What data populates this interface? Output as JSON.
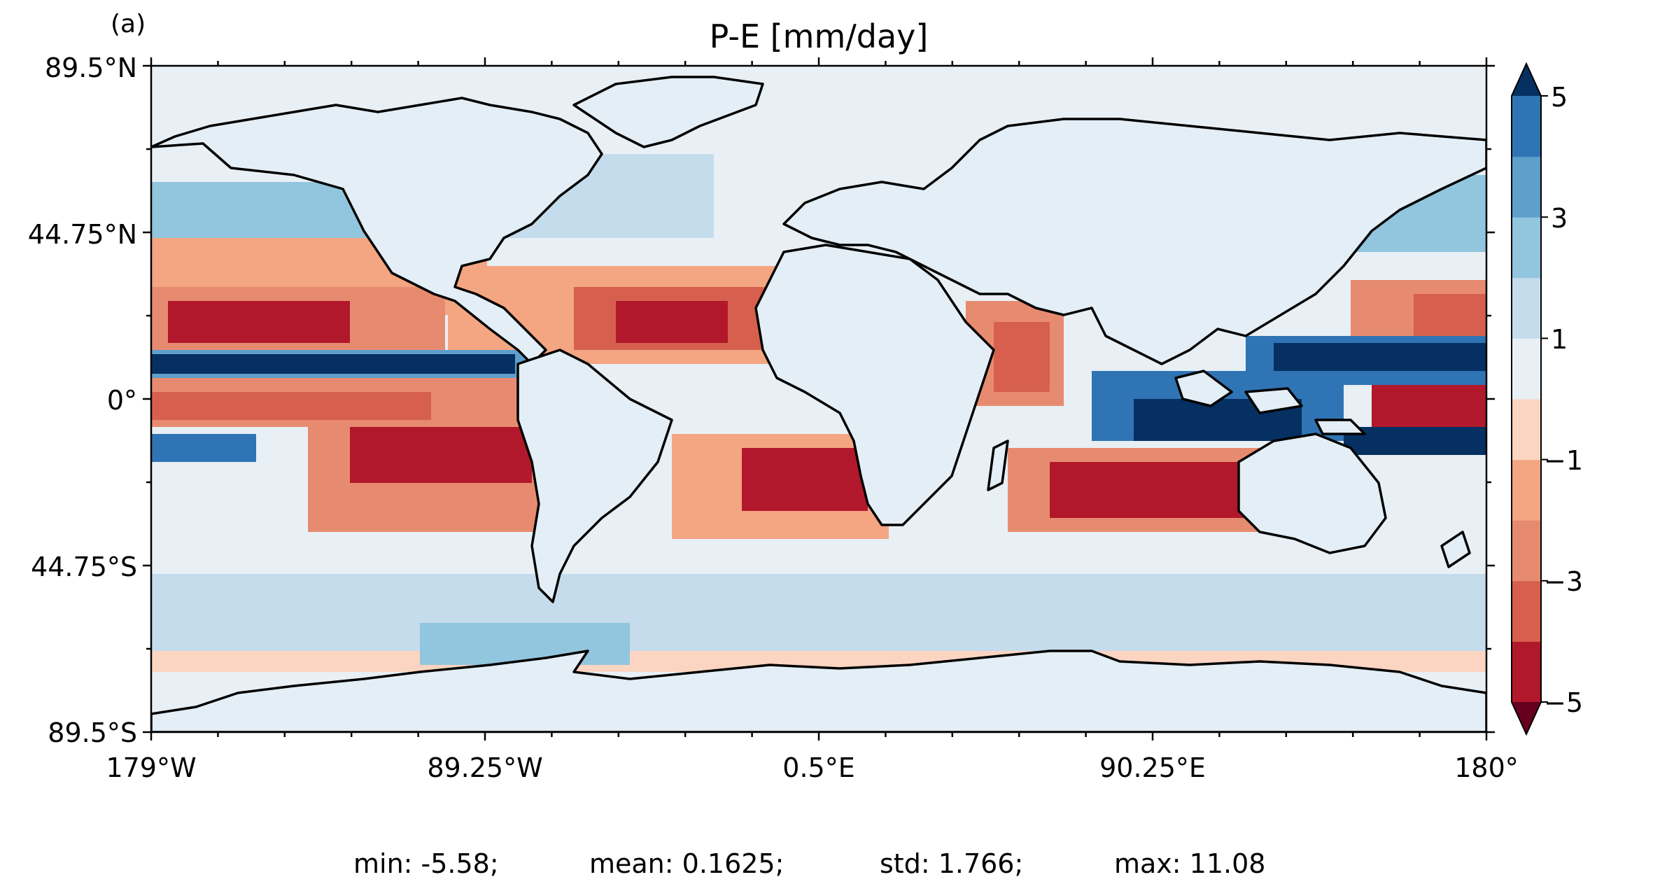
{
  "panel_label": "(a)",
  "title": "P-E [mm/day]",
  "map": {
    "ocean_background": "#e8f0f5",
    "y_tick_labels": [
      "89.5°N",
      "44.75°N",
      "0°",
      "44.75°S",
      "89.5°S"
    ],
    "x_tick_labels": [
      "179°W",
      "89.25°W",
      "0.5°E",
      "90.25°E",
      "180°"
    ],
    "coastline_color": "#000000"
  },
  "colorbar": {
    "levels": [
      -5,
      -4,
      -3,
      -2,
      -1,
      0,
      1,
      2,
      3,
      4,
      5
    ],
    "tick_labels": [
      "5",
      "3",
      "1",
      "−1",
      "−3",
      "−5"
    ],
    "colors_bottom_to_top": [
      "#b2182b",
      "#d6604d",
      "#e78b70",
      "#f4a582",
      "#fbd5c1",
      "#e8f0f5",
      "#c5dcec",
      "#92c5de",
      "#5e9fcc",
      "#2f74b4"
    ],
    "over_color": "#053061",
    "under_color": "#67001f",
    "extend": "both"
  },
  "stats": {
    "min": "min: -5.58;",
    "mean": "mean: 0.1625;",
    "std": "std: 1.766;",
    "max": "max: 11.08"
  }
}
